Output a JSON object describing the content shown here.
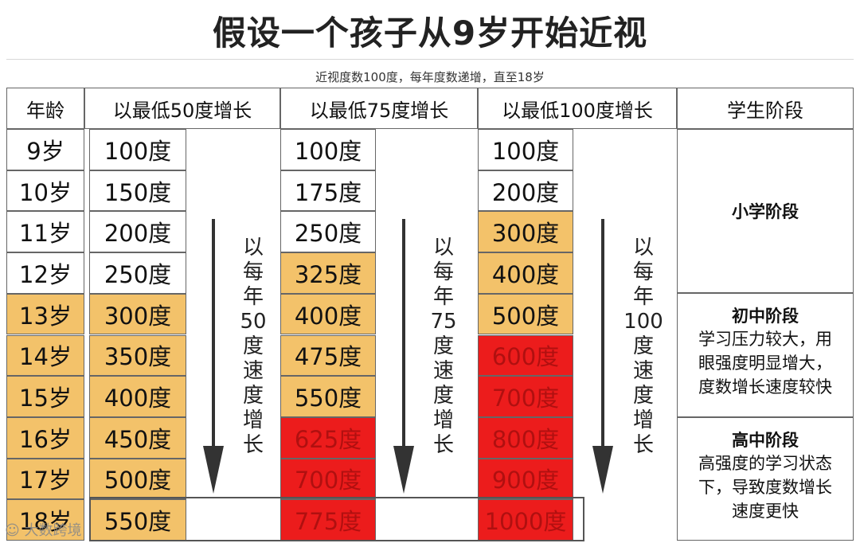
{
  "title": "假设一个孩子从9岁开始近视",
  "subtitle": "近视度数100度，每年度数递增，直至18岁",
  "headers": {
    "age": "年龄",
    "col50": "以最低50度增长",
    "col75": "以最低75度增长",
    "col100": "以最低100度增长",
    "stage": "学生阶段"
  },
  "ages": [
    "9岁",
    "10岁",
    "11岁",
    "12岁",
    "13岁",
    "14岁",
    "15岁",
    "16岁",
    "17岁",
    "18岁"
  ],
  "col50": [
    "100度",
    "150度",
    "200度",
    "250度",
    "300度",
    "350度",
    "400度",
    "450度",
    "500度",
    "550度"
  ],
  "col75": [
    "100度",
    "175度",
    "250度",
    "325度",
    "400度",
    "475度",
    "550度",
    "625度",
    "700度",
    "775度"
  ],
  "col100": [
    "100度",
    "200度",
    "300度",
    "400度",
    "500度",
    "600度",
    "700度",
    "800度",
    "900度",
    "1000度"
  ],
  "arrows": {
    "a50": [
      "以",
      "每",
      "年",
      "50",
      "度",
      "速",
      "度",
      "增",
      "长"
    ],
    "a75": [
      "以",
      "每",
      "年",
      "75",
      "度",
      "速",
      "度",
      "增",
      "长"
    ],
    "a100": [
      "以",
      "每",
      "年",
      "100",
      "度",
      "速",
      "度",
      "增",
      "长"
    ]
  },
  "stages": {
    "primary": {
      "title": "小学阶段"
    },
    "middle": {
      "title": "初中阶段",
      "desc": [
        "学习压力较大，用",
        "眼强度明显增大，",
        "度数增长速度较快"
      ]
    },
    "high": {
      "title": "高中阶段",
      "desc": [
        "高强度的学习状态",
        "下，导致度数增长",
        "速度更快"
      ]
    }
  },
  "watermark": "大数跨境",
  "colors": {
    "white": "#ffffff",
    "yellow": "#f3c26a",
    "red": "#ec1c1c"
  }
}
